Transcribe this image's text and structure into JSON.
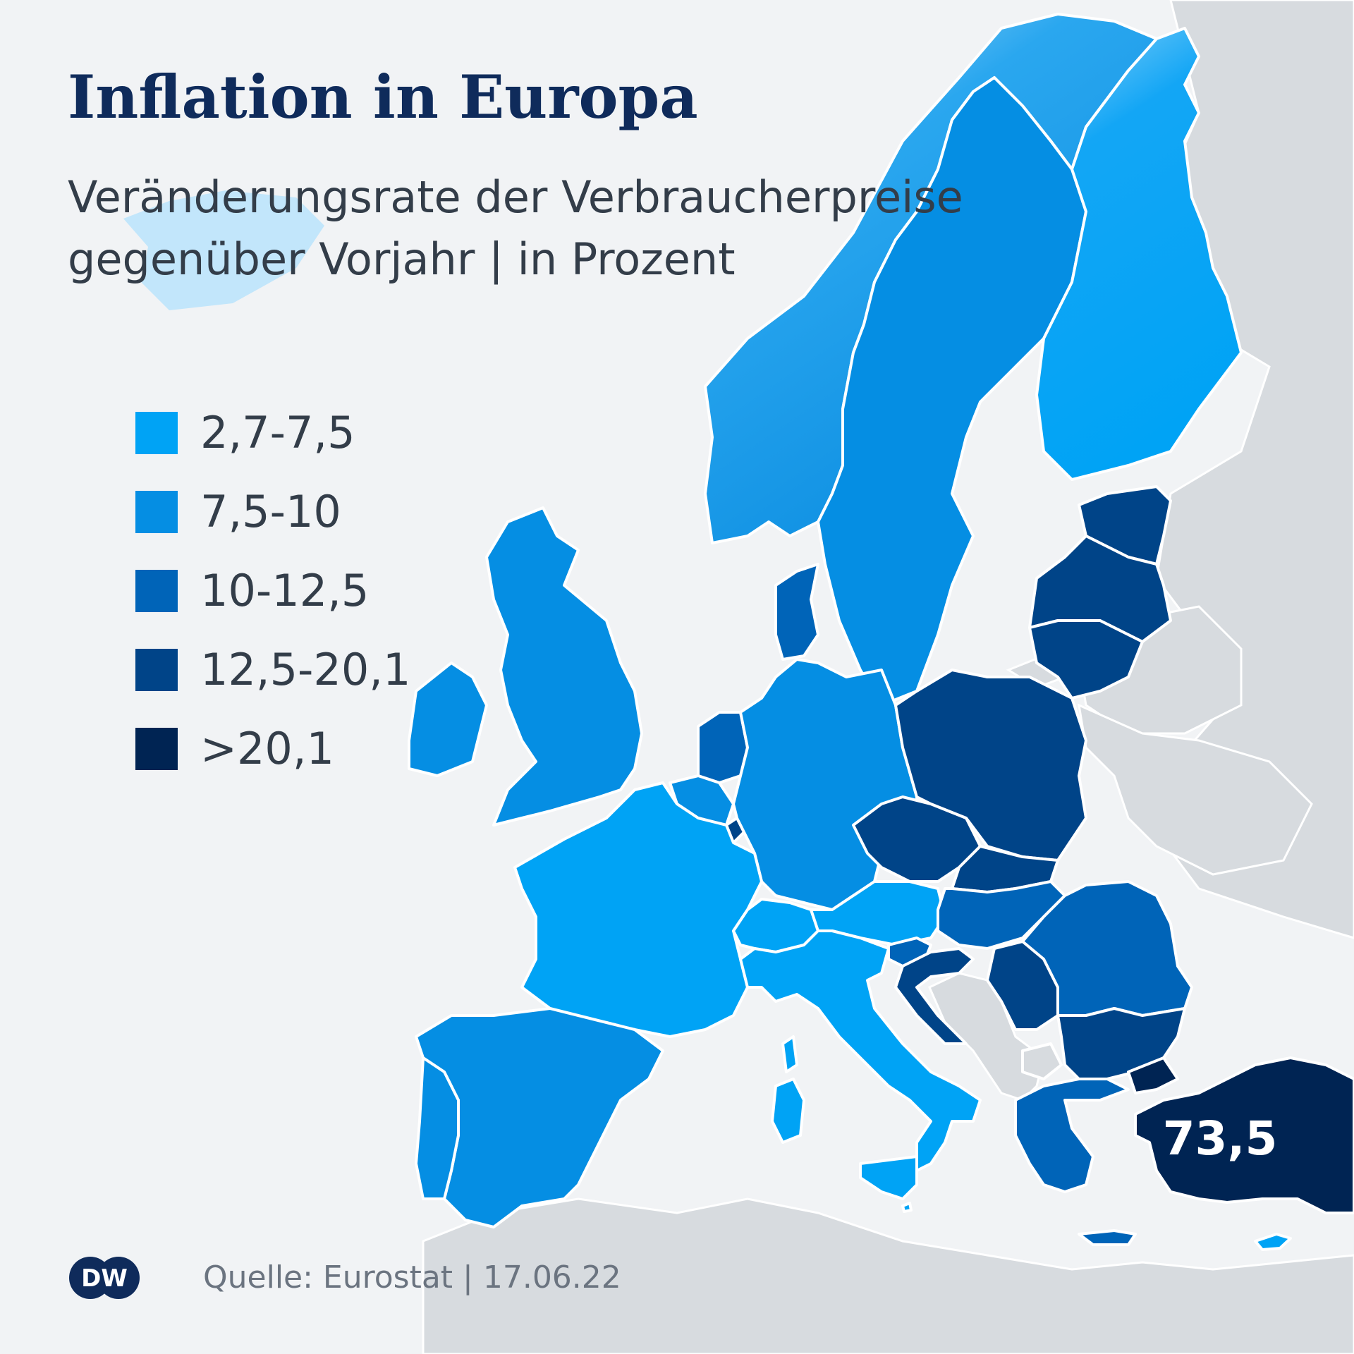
{
  "title": "Inflation in Europa",
  "subtitle": {
    "line1": "Veränderungsrate der Verbraucherpreise",
    "line2": "gegenüber Vorjahr | in Prozent"
  },
  "legend": [
    {
      "label": "2,7-7,5",
      "color": "#00a3f5"
    },
    {
      "label": "7,5-10",
      "color": "#058ee3"
    },
    {
      "label": "10-12,5",
      "color": "#0064b8"
    },
    {
      "label": "12,5-20,1",
      "color": "#004488"
    },
    {
      "label": ">20,1",
      "color": "#002453"
    }
  ],
  "map": {
    "non_data_land_color": "#d7dbdf",
    "turkey_label": "73,5"
  },
  "footer": {
    "logo_text": "DW",
    "source": "Quelle: Eurostat | 17.06.22"
  }
}
